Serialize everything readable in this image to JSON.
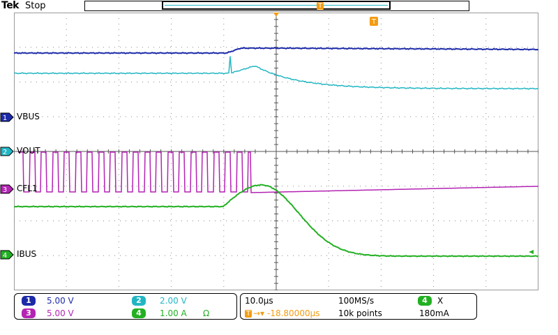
{
  "header": {
    "brand": "Tek",
    "run_state": "Stop",
    "trigger_marker": "T"
  },
  "colors": {
    "ch1": "#1c2aa8",
    "ch2": "#22b6c4",
    "ch3": "#b324b3",
    "ch4": "#22b022",
    "trigger": "#f39c12",
    "grid": "#888888"
  },
  "channels": [
    {
      "num": "1",
      "label": "VBUS",
      "scale": "5.00 V"
    },
    {
      "num": "2",
      "label": "VOUT",
      "scale": "2.00 V"
    },
    {
      "num": "3",
      "label": "CFL1",
      "scale": "5.00 V"
    },
    {
      "num": "4",
      "label": "IBUS",
      "scale": "1.00 A",
      "unit_symbol": "Ω"
    }
  ],
  "readout": {
    "timebase": "10.0µs",
    "trigger_delay": "-18.80000µs",
    "sample_rate": "100MS/s",
    "record_length": "10k points",
    "trigger_source": "4",
    "trigger_slope": "Χ",
    "trigger_level": "180mA"
  },
  "chart_data": {
    "type": "line",
    "time_per_division": "10.0µs",
    "divisions": {
      "horizontal": 10,
      "vertical": 8
    },
    "series": [
      {
        "name": "VBUS",
        "channel": 1,
        "scale": "5.00 V"
      },
      {
        "name": "VOUT",
        "channel": 2,
        "scale": "2.00 V"
      },
      {
        "name": "CFL1",
        "channel": 3,
        "scale": "5.00 V"
      },
      {
        "name": "IBUS",
        "channel": 4,
        "scale": "1.00 A"
      }
    ]
  }
}
